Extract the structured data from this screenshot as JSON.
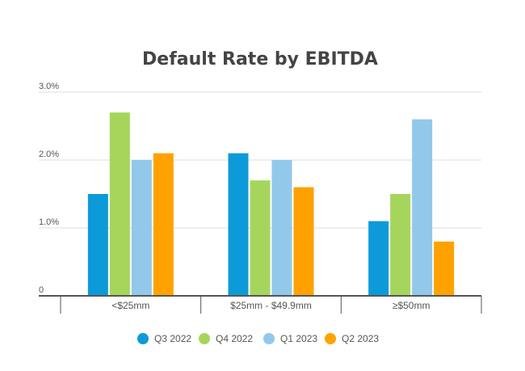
{
  "chart_data": {
    "type": "bar",
    "title": "Default Rate by EBITDA",
    "xlabel": "",
    "ylabel": "",
    "categories": [
      "<$25mm",
      "$25mm - $49.9mm",
      "≥$50mm"
    ],
    "ylim": [
      0,
      3.0
    ],
    "y_ticks": [
      {
        "value": 0,
        "label": "0"
      },
      {
        "value": 1.0,
        "label": "1.0%"
      },
      {
        "value": 2.0,
        "label": "2.0%"
      },
      {
        "value": 3.0,
        "label": "3.0%"
      }
    ],
    "grid": true,
    "legend_position": "bottom",
    "series": [
      {
        "name": "Q3 2022",
        "color": "#0d9ad8",
        "values": [
          1.5,
          2.1,
          1.1
        ]
      },
      {
        "name": "Q4 2022",
        "color": "#a5d65b",
        "values": [
          2.7,
          1.7,
          1.5
        ]
      },
      {
        "name": "Q1 2023",
        "color": "#92c8ea",
        "values": [
          2.0,
          2.0,
          2.6
        ]
      },
      {
        "name": "Q2 2023",
        "color": "#ffa200",
        "values": [
          2.1,
          1.6,
          0.8
        ]
      }
    ]
  }
}
